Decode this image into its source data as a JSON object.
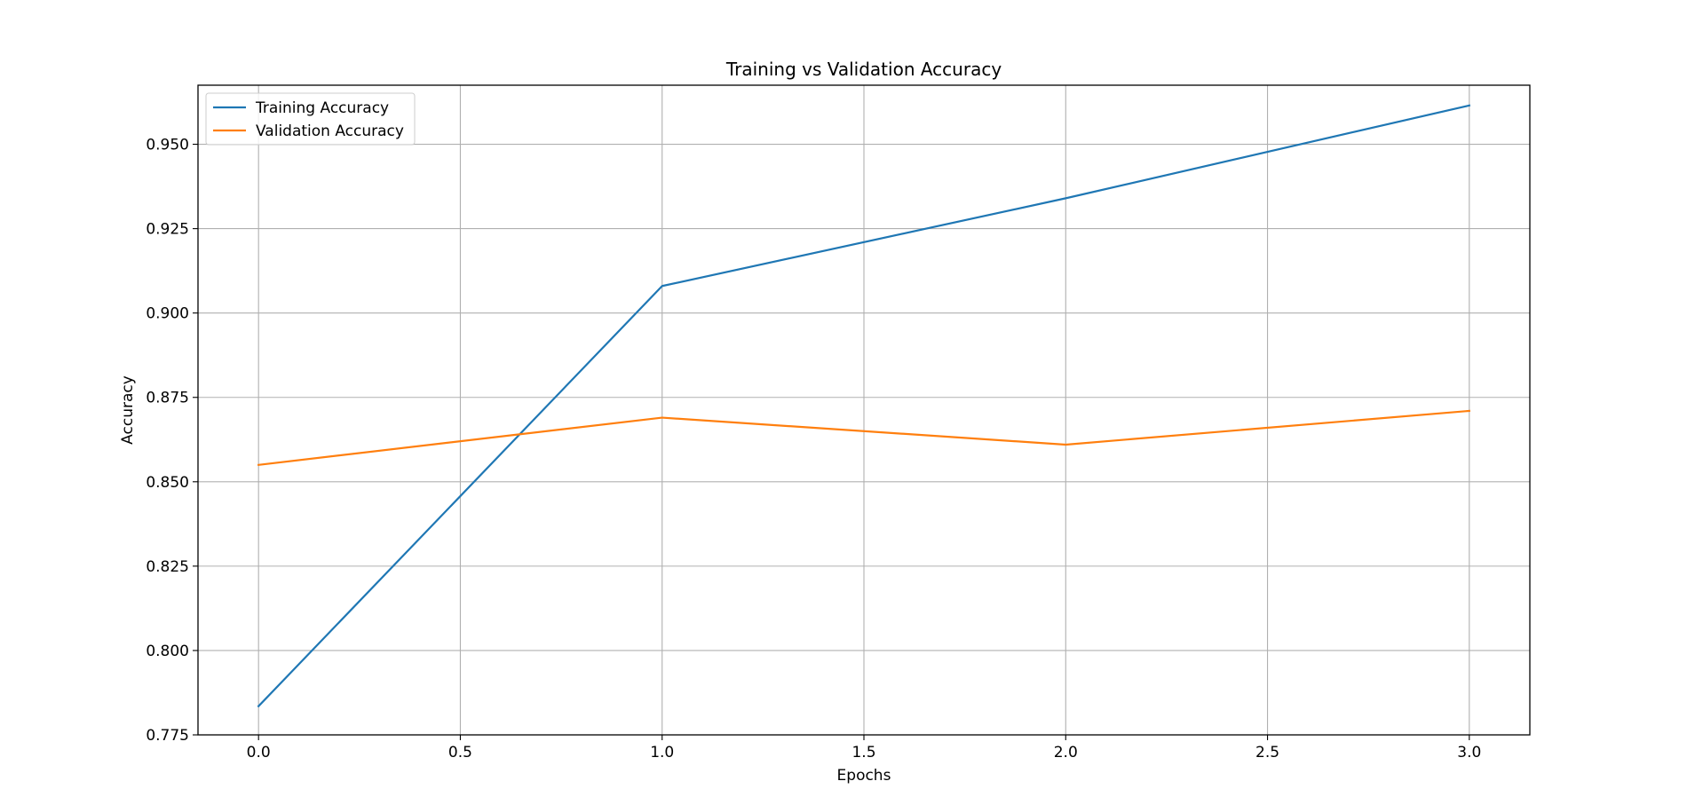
{
  "chart_data": {
    "type": "line",
    "title": "Training vs Validation Accuracy",
    "xlabel": "Epochs",
    "ylabel": "Accuracy",
    "xlim": [
      -0.15,
      3.15
    ],
    "ylim": [
      0.775,
      0.9675
    ],
    "xticks": [
      0.0,
      0.5,
      1.0,
      1.5,
      2.0,
      2.5,
      3.0
    ],
    "xtick_labels": [
      "0.0",
      "0.5",
      "1.0",
      "1.5",
      "2.0",
      "2.5",
      "3.0"
    ],
    "yticks": [
      0.775,
      0.8,
      0.825,
      0.85,
      0.875,
      0.9,
      0.925,
      0.95
    ],
    "ytick_labels": [
      "0.775",
      "0.800",
      "0.825",
      "0.850",
      "0.875",
      "0.900",
      "0.925",
      "0.950"
    ],
    "grid": true,
    "legend_position": "upper-left",
    "x": [
      0,
      1,
      2,
      3
    ],
    "series": [
      {
        "name": "Training Accuracy",
        "color": "#1f77b4",
        "values": [
          0.7835,
          0.908,
          0.934,
          0.9615
        ]
      },
      {
        "name": "Validation Accuracy",
        "color": "#ff7f0e",
        "values": [
          0.855,
          0.869,
          0.861,
          0.871
        ]
      }
    ]
  }
}
